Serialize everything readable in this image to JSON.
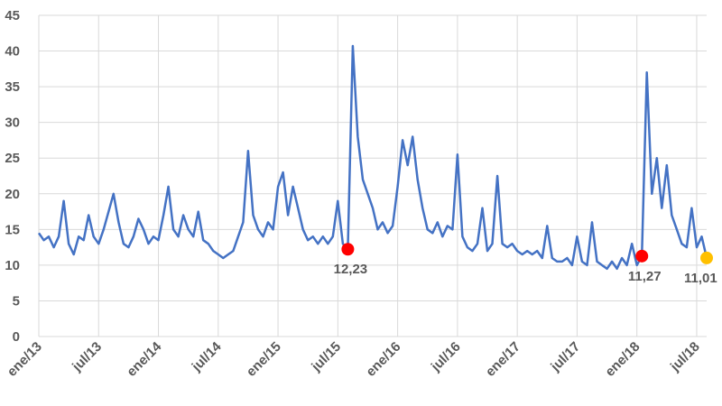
{
  "chart_data": {
    "type": "line",
    "categories": [
      "ene/13",
      null,
      null,
      null,
      null,
      null,
      null,
      null,
      null,
      null,
      null,
      null,
      "jul/13",
      null,
      null,
      null,
      null,
      null,
      null,
      null,
      null,
      null,
      null,
      null,
      "ene/14",
      null,
      null,
      null,
      null,
      null,
      null,
      null,
      null,
      null,
      null,
      null,
      "jul/14",
      null,
      null,
      null,
      null,
      null,
      null,
      null,
      null,
      null,
      null,
      null,
      "ene/15",
      null,
      null,
      null,
      null,
      null,
      null,
      null,
      null,
      null,
      null,
      null,
      "jul/15",
      null,
      null,
      null,
      null,
      null,
      null,
      null,
      null,
      null,
      null,
      null,
      "ene/16",
      null,
      null,
      null,
      null,
      null,
      null,
      null,
      null,
      null,
      null,
      null,
      "jul/16",
      null,
      null,
      null,
      null,
      null,
      null,
      null,
      null,
      null,
      null,
      null,
      "ene/17",
      null,
      null,
      null,
      null,
      null,
      null,
      null,
      null,
      null,
      null,
      null,
      "jul/17",
      null,
      null,
      null,
      null,
      null,
      null,
      null,
      null,
      null,
      null,
      null,
      "ene/18",
      null,
      null,
      null,
      null,
      null,
      null,
      null,
      null,
      null,
      null,
      null,
      "jul/18",
      null,
      null
    ],
    "series": [
      {
        "color": "#4472c4",
        "values": [
          14.5,
          13.5,
          14,
          12.5,
          14,
          19,
          13,
          11.5,
          14,
          13.5,
          17,
          14,
          13,
          15,
          17.5,
          20,
          16,
          13,
          12.5,
          14,
          16.5,
          15,
          13,
          14,
          13.5,
          17,
          21,
          15,
          14,
          17,
          15,
          14,
          17.5,
          13.5,
          13,
          12,
          11.5,
          11,
          11.5,
          12,
          14,
          16,
          26,
          17,
          15,
          14,
          16,
          15,
          21,
          23,
          17,
          21,
          18,
          15,
          13.5,
          14,
          13,
          14,
          13,
          14,
          19,
          13,
          12.23,
          40.7,
          28,
          22,
          20,
          18,
          15,
          16,
          14.5,
          15.5,
          21,
          27.5,
          24,
          28,
          22,
          18,
          15,
          14.5,
          16,
          14,
          15.5,
          15,
          25.5,
          14,
          12.5,
          12,
          13,
          18,
          12,
          13,
          22.5,
          13,
          12.5,
          13,
          12,
          11.5,
          12,
          11.5,
          12,
          11,
          15.5,
          11,
          10.5,
          10.5,
          11,
          10,
          14,
          10.5,
          10,
          16,
          10.5,
          10,
          9.5,
          10.5,
          9.5,
          11,
          10,
          13,
          10,
          11.27,
          37,
          20,
          25,
          18,
          24,
          17,
          15,
          13,
          12.5,
          18,
          12.5,
          14,
          11.01
        ]
      }
    ],
    "annotations": [
      {
        "index": 62,
        "label": "12,23",
        "color": "#ff0000"
      },
      {
        "index": 121,
        "label": "11,27",
        "color": "#ff0000"
      },
      {
        "index": 134,
        "label": "11,01",
        "color": "#ffc000"
      }
    ],
    "ylim": [
      0,
      45
    ],
    "yticks": [
      0,
      5,
      10,
      15,
      20,
      25,
      30,
      35,
      40,
      45
    ],
    "grid": true
  }
}
